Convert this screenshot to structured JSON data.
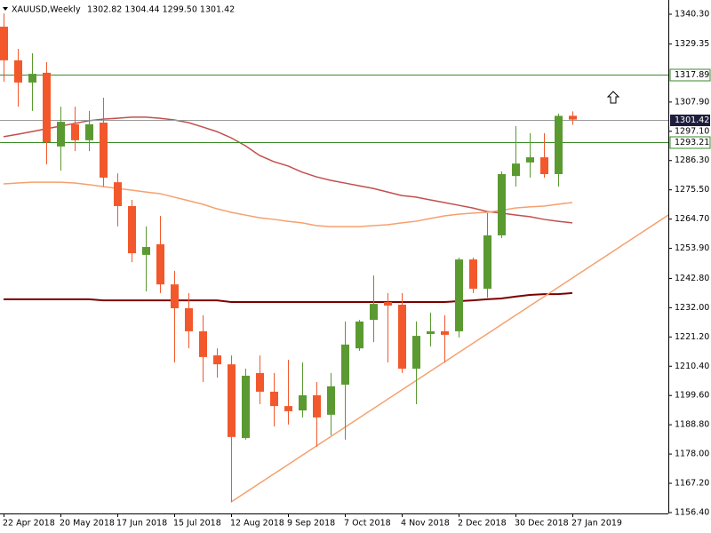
{
  "chart_data": {
    "type": "candlestick",
    "title": "XAUUSD,Weekly",
    "ohlc_text": "1302.82 1304.44 1299.50 1301.42",
    "categories": [
      "22 Apr 2018",
      null,
      null,
      null,
      "20 May 2018",
      null,
      null,
      null,
      "17 Jun 2018",
      null,
      null,
      null,
      "15 Jul 2018",
      null,
      null,
      null,
      "12 Aug 2018",
      null,
      null,
      null,
      "9 Sep 2018",
      null,
      null,
      null,
      "7 Oct 2018",
      null,
      null,
      null,
      "4 Nov 2018",
      null,
      null,
      null,
      "2 Dec 2018",
      null,
      null,
      null,
      "30 Dec 2018",
      null,
      null,
      null,
      "27 Jan 2019"
    ],
    "open": [
      1335.7,
      1323.3,
      1315.1,
      1318.7,
      1291.5,
      1299.7,
      1293.8,
      1300.3,
      1278.3,
      1269.5,
      1251.5,
      1255.4,
      1240.6,
      1231.8,
      1223.3,
      1214.4,
      1211.1,
      1183.9,
      1207.9,
      1201.0,
      1195.7,
      1194.1,
      1199.7,
      1192.5,
      1203.6,
      1217.0,
      1227.5,
      1234.1,
      1233.1,
      1209.5,
      1222.3,
      1223.3,
      1223.3,
      1249.8,
      1239.0,
      1258.7,
      1280.6,
      1285.6,
      1287.5,
      1281.3,
      1302.82
    ],
    "high": [
      1340.6,
      1327.5,
      1325.9,
      1322.6,
      1306.2,
      1306.2,
      1304.6,
      1309.5,
      1281.6,
      1271.8,
      1262.0,
      1265.9,
      1245.6,
      1237.4,
      1229.2,
      1217.0,
      1214.4,
      1209.5,
      1214.4,
      1207.9,
      1212.8,
      1211.8,
      1204.6,
      1207.9,
      1226.9,
      1227.5,
      1243.9,
      1237.4,
      1237.4,
      1226.9,
      1230.2,
      1229.2,
      1250.5,
      1250.5,
      1266.9,
      1282.3,
      1299.0,
      1296.4,
      1296.4,
      1303.6,
      1304.44
    ],
    "low": [
      1315.4,
      1306.2,
      1304.6,
      1284.9,
      1282.6,
      1289.8,
      1289.8,
      1276.7,
      1262.0,
      1248.8,
      1238.0,
      1237.4,
      1211.8,
      1217.0,
      1204.6,
      1206.2,
      1160.3,
      1183.3,
      1196.4,
      1188.2,
      1188.9,
      1191.5,
      1180.7,
      1184.9,
      1183.3,
      1216.1,
      1219.3,
      1211.8,
      1207.9,
      1196.4,
      1217.7,
      1211.8,
      1221.0,
      1237.4,
      1235.7,
      1257.7,
      1276.7,
      1280.0,
      1280.0,
      1276.7,
      1299.5
    ],
    "close": [
      1323.3,
      1315.1,
      1318.3,
      1293.1,
      1300.6,
      1293.8,
      1299.7,
      1280.0,
      1269.5,
      1252.1,
      1254.4,
      1240.6,
      1231.8,
      1223.3,
      1213.8,
      1211.1,
      1184.3,
      1206.9,
      1201.0,
      1195.7,
      1193.8,
      1199.7,
      1191.5,
      1203.0,
      1218.4,
      1226.9,
      1233.4,
      1232.8,
      1209.5,
      1221.6,
      1223.3,
      1222.0,
      1249.8,
      1239.0,
      1258.7,
      1281.3,
      1285.2,
      1287.5,
      1281.3,
      1302.8,
      1301.42
    ],
    "up_color": "#5a9a30",
    "down_color": "#f2582b",
    "series": [
      {
        "color": "#c0504d",
        "values": [
          1295.1,
          1296.0,
          1297.0,
          1298.0,
          1299.0,
          1300.0,
          1301.0,
          1301.6,
          1301.9,
          1302.3,
          1302.3,
          1301.9,
          1301.3,
          1300.3,
          1298.7,
          1297.0,
          1294.7,
          1291.8,
          1288.2,
          1285.9,
          1284.3,
          1282.0,
          1280.3,
          1279.0,
          1278.0,
          1277.0,
          1276.0,
          1274.7,
          1273.4,
          1272.8,
          1271.8,
          1270.8,
          1269.8,
          1268.8,
          1267.5,
          1266.9,
          1266.2,
          1265.6,
          1264.6,
          1263.9,
          1263.3
        ]
      },
      {
        "color": "#f5a06e",
        "values": [
          1277.7,
          1278.0,
          1278.3,
          1278.3,
          1278.3,
          1278.0,
          1277.4,
          1276.7,
          1276.0,
          1275.4,
          1274.7,
          1274.1,
          1272.8,
          1271.5,
          1270.2,
          1268.5,
          1267.2,
          1266.2,
          1265.2,
          1264.6,
          1263.9,
          1263.3,
          1262.3,
          1261.9,
          1261.9,
          1261.9,
          1262.3,
          1262.6,
          1263.3,
          1263.9,
          1264.9,
          1265.9,
          1266.5,
          1266.9,
          1267.2,
          1267.9,
          1268.8,
          1269.2,
          1269.5,
          1270.2,
          1270.8
        ]
      },
      {
        "color": "#7b0000",
        "values": [
          1235.1,
          1235.1,
          1235.1,
          1235.1,
          1235.1,
          1235.1,
          1235.1,
          1234.7,
          1234.7,
          1234.7,
          1234.7,
          1234.7,
          1234.7,
          1234.7,
          1234.7,
          1234.7,
          1234.1,
          1234.1,
          1234.1,
          1234.1,
          1234.1,
          1234.1,
          1234.1,
          1234.1,
          1234.1,
          1234.1,
          1234.1,
          1234.1,
          1234.1,
          1234.1,
          1234.1,
          1234.1,
          1234.4,
          1234.7,
          1235.1,
          1235.4,
          1236.1,
          1236.7,
          1237.0,
          1237.0,
          1237.4
        ]
      }
    ],
    "trendline": {
      "color": "#f5a06e",
      "x": [
        16,
        46.75
      ],
      "y": [
        1160.3,
        1266.2
      ]
    },
    "levels": [
      {
        "value": 1317.89,
        "color": "#3a8a2a"
      },
      {
        "value": 1293.21,
        "color": "#3a8a2a"
      }
    ],
    "price_line_color": "#9a9a9a",
    "ylim": [
      1156.07,
      1345.55
    ],
    "yticks": [
      {
        "value": 1340.3,
        "label": "1340.30"
      },
      1329.35,
      {
        "value": 1307.9,
        "label": "1307.90"
      },
      {
        "value": 1297.1,
        "label": "1297.10"
      },
      {
        "value": 1286.3,
        "label": "1286.30"
      },
      {
        "value": 1275.5,
        "label": "1275.50"
      },
      {
        "value": 1264.7,
        "label": "1264.70"
      },
      {
        "value": 1253.9,
        "label": "1253.90"
      },
      {
        "value": 1242.8,
        "label": "1242.80"
      },
      {
        "value": 1232,
        "label": "1232.00"
      },
      {
        "value": 1221.2,
        "label": "1221.20"
      },
      {
        "value": 1210.4,
        "label": "1210.40"
      },
      {
        "value": 1199.6,
        "label": "1199.60"
      },
      {
        "value": 1188.8,
        "label": "1188.80"
      },
      {
        "value": 1178,
        "label": "1178.00"
      },
      {
        "value": 1167.2,
        "label": "1167.20"
      },
      {
        "value": 1156.4,
        "label": "1156.40"
      }
    ],
    "grid": false
  }
}
